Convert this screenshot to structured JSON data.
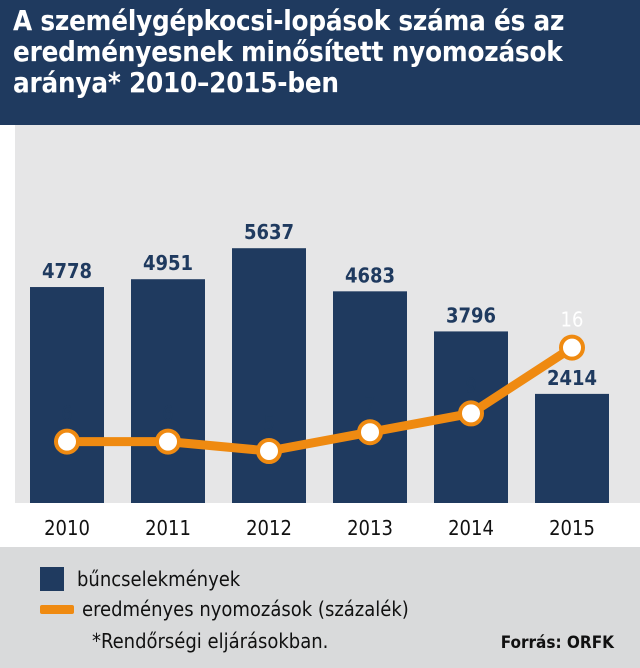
{
  "title": "A személygépkocsi-lopások száma és az eredményesnek minősített nyomozások aránya* 2010–2015-ben",
  "colors": {
    "header_bg": "#1f3a5f",
    "bar": "#1f3a5f",
    "line": "#ef8a11",
    "chart_bg": "#e6e6e7",
    "legend_bg": "#d9dadb"
  },
  "legend": {
    "bars_label": "bűncselekmények",
    "line_label": "eredményes nyomozások (százalék)"
  },
  "footnote": "*Rendőrségi eljárásokban.",
  "source": "Forrás: ORFK",
  "chart_data": {
    "type": "bar",
    "categories": [
      "2010",
      "2011",
      "2012",
      "2013",
      "2014",
      "2015"
    ],
    "series": [
      {
        "name": "bűncselekmények",
        "type": "bar",
        "values": [
          4778,
          4951,
          5637,
          4683,
          3796,
          2414
        ],
        "labels": [
          "4778",
          "4951",
          "5637",
          "4683",
          "3796",
          "2414"
        ]
      },
      {
        "name": "eredményes nyomozások (százalék)",
        "type": "line",
        "values": [
          6,
          6,
          5,
          7,
          9,
          16
        ],
        "labels": [
          "6",
          "6",
          "5",
          "7",
          "9",
          "16"
        ]
      }
    ],
    "title": "A személygépkocsi-lopások száma és az eredményesnek minősített nyomozások aránya* 2010–2015-ben",
    "xlabel": "",
    "ylabel": "",
    "grid": false,
    "legend_position": "bottom"
  }
}
